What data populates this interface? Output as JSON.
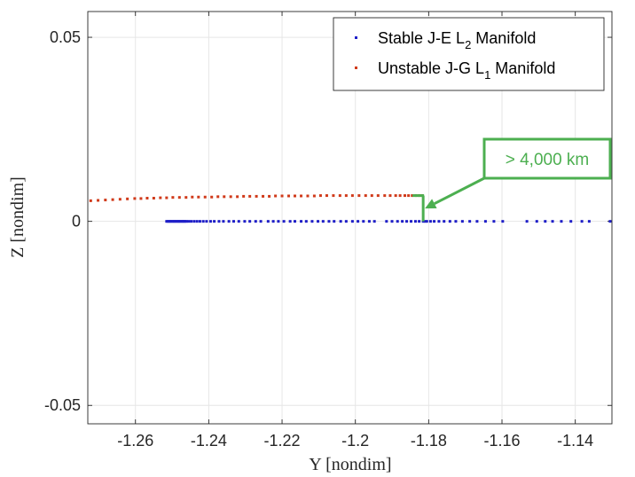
{
  "chart_data": {
    "type": "scatter",
    "title": "",
    "xlabel": "Y [nondim]",
    "ylabel": "Z [nondim]",
    "xlim": [
      -1.273,
      -1.13
    ],
    "ylim": [
      -0.055,
      0.057
    ],
    "x_ticks": [
      -1.26,
      -1.24,
      -1.22,
      -1.2,
      -1.18,
      -1.16,
      -1.14
    ],
    "x_tick_labels": [
      "-1.26",
      "-1.24",
      "-1.22",
      "-1.2",
      "-1.18",
      "-1.16",
      "-1.14"
    ],
    "y_ticks": [
      -0.05,
      0,
      0.05
    ],
    "y_tick_labels": [
      "-0.05",
      "0",
      "0.05"
    ],
    "grid": true,
    "legend_position": "top-right",
    "series": [
      {
        "name": "Stable J-E L",
        "name_sub": "2",
        "name_tail": " Manifold",
        "color": "#1f1fc8",
        "points": [
          [
            -1.2515,
            0.0
          ],
          [
            -1.2512,
            0.0
          ],
          [
            -1.2509,
            0.0
          ],
          [
            -1.2506,
            0.0
          ],
          [
            -1.2503,
            0.0
          ],
          [
            -1.25,
            0.0
          ],
          [
            -1.2497,
            0.0
          ],
          [
            -1.2494,
            0.0
          ],
          [
            -1.2491,
            0.0
          ],
          [
            -1.2488,
            0.0
          ],
          [
            -1.2485,
            0.0
          ],
          [
            -1.2482,
            0.0
          ],
          [
            -1.2479,
            0.0
          ],
          [
            -1.2476,
            0.0
          ],
          [
            -1.2473,
            0.0
          ],
          [
            -1.247,
            0.0
          ],
          [
            -1.2467,
            0.0
          ],
          [
            -1.2464,
            0.0
          ],
          [
            -1.2461,
            0.0
          ],
          [
            -1.2455,
            0.0
          ],
          [
            -1.2448,
            0.0
          ],
          [
            -1.244,
            0.0
          ],
          [
            -1.2432,
            0.0
          ],
          [
            -1.2424,
            0.0
          ],
          [
            -1.2415,
            0.0
          ],
          [
            -1.2406,
            0.0
          ],
          [
            -1.2395,
            0.0
          ],
          [
            -1.2385,
            0.0
          ],
          [
            -1.2372,
            0.0
          ],
          [
            -1.236,
            0.0
          ],
          [
            -1.2345,
            0.0
          ],
          [
            -1.2332,
            0.0
          ],
          [
            -1.2318,
            0.0
          ],
          [
            -1.2302,
            0.0
          ],
          [
            -1.2288,
            0.0
          ],
          [
            -1.2272,
            0.0
          ],
          [
            -1.2258,
            0.0
          ],
          [
            -1.2238,
            0.0
          ],
          [
            -1.2224,
            0.0
          ],
          [
            -1.221,
            0.0
          ],
          [
            -1.2195,
            0.0
          ],
          [
            -1.2178,
            0.0
          ],
          [
            -1.2165,
            0.0
          ],
          [
            -1.2148,
            0.0
          ],
          [
            -1.2134,
            0.0
          ],
          [
            -1.2118,
            0.0
          ],
          [
            -1.2102,
            0.0
          ],
          [
            -1.2088,
            0.0
          ],
          [
            -1.2072,
            0.0
          ],
          [
            -1.2058,
            0.0
          ],
          [
            -1.204,
            0.0
          ],
          [
            -1.2025,
            0.0
          ],
          [
            -1.2008,
            0.0
          ],
          [
            -1.1993,
            0.0
          ],
          [
            -1.1978,
            0.0
          ],
          [
            -1.1962,
            0.0
          ],
          [
            -1.1948,
            0.0
          ],
          [
            -1.1915,
            0.0
          ],
          [
            -1.19,
            0.0
          ],
          [
            -1.1885,
            0.0
          ],
          [
            -1.1872,
            0.0
          ],
          [
            -1.186,
            0.0
          ],
          [
            -1.1848,
            0.0
          ],
          [
            -1.1836,
            0.0
          ],
          [
            -1.1826,
            0.0
          ],
          [
            -1.1815,
            0.0
          ],
          [
            -1.181,
            0.0
          ],
          [
            -1.1805,
            0.0
          ],
          [
            -1.1795,
            0.0
          ],
          [
            -1.1785,
            0.0
          ],
          [
            -1.1772,
            0.0
          ],
          [
            -1.1758,
            0.0
          ],
          [
            -1.1742,
            0.0
          ],
          [
            -1.1726,
            0.0
          ],
          [
            -1.1708,
            0.0
          ],
          [
            -1.1688,
            0.0
          ],
          [
            -1.1668,
            0.0
          ],
          [
            -1.1645,
            0.0
          ],
          [
            -1.1622,
            0.0
          ],
          [
            -1.1598,
            0.0
          ],
          [
            -1.1532,
            0.0
          ],
          [
            -1.1505,
            0.0
          ],
          [
            -1.1482,
            0.0
          ],
          [
            -1.1462,
            0.0
          ],
          [
            -1.1438,
            0.0
          ],
          [
            -1.1412,
            0.0
          ],
          [
            -1.1382,
            0.0
          ],
          [
            -1.1362,
            0.0
          ],
          [
            -1.1305,
            0.0
          ]
        ]
      },
      {
        "name": "Unstable J-G L",
        "name_sub": "1",
        "name_tail": " Manifold",
        "color": "#d03a1a",
        "points": [
          [
            -1.2722,
            0.0056
          ],
          [
            -1.2702,
            0.0057
          ],
          [
            -1.2682,
            0.0058
          ],
          [
            -1.2662,
            0.0059
          ],
          [
            -1.2642,
            0.006
          ],
          [
            -1.2622,
            0.0061
          ],
          [
            -1.2602,
            0.0062
          ],
          [
            -1.2585,
            0.0062
          ],
          [
            -1.2568,
            0.0063
          ],
          [
            -1.255,
            0.0063
          ],
          [
            -1.2532,
            0.0064
          ],
          [
            -1.2515,
            0.0064
          ],
          [
            -1.2498,
            0.0065
          ],
          [
            -1.248,
            0.0065
          ],
          [
            -1.2462,
            0.0065
          ],
          [
            -1.2445,
            0.0066
          ],
          [
            -1.2428,
            0.0066
          ],
          [
            -1.241,
            0.0066
          ],
          [
            -1.2392,
            0.0066
          ],
          [
            -1.2375,
            0.0067
          ],
          [
            -1.2358,
            0.0067
          ],
          [
            -1.234,
            0.0067
          ],
          [
            -1.2322,
            0.0067
          ],
          [
            -1.2305,
            0.0068
          ],
          [
            -1.2288,
            0.0068
          ],
          [
            -1.227,
            0.0068
          ],
          [
            -1.2252,
            0.0068
          ],
          [
            -1.2235,
            0.0068
          ],
          [
            -1.2218,
            0.0069
          ],
          [
            -1.22,
            0.0069
          ],
          [
            -1.2182,
            0.0069
          ],
          [
            -1.2165,
            0.0069
          ],
          [
            -1.2148,
            0.0069
          ],
          [
            -1.213,
            0.0069
          ],
          [
            -1.2112,
            0.0069
          ],
          [
            -1.2095,
            0.007
          ],
          [
            -1.2078,
            0.007
          ],
          [
            -1.206,
            0.007
          ],
          [
            -1.2042,
            0.007
          ],
          [
            -1.2025,
            0.007
          ],
          [
            -1.2008,
            0.007
          ],
          [
            -1.199,
            0.007
          ],
          [
            -1.1972,
            0.007
          ],
          [
            -1.1955,
            0.007
          ],
          [
            -1.1938,
            0.007
          ],
          [
            -1.192,
            0.007
          ],
          [
            -1.1905,
            0.007
          ],
          [
            -1.189,
            0.007
          ],
          [
            -1.1878,
            0.007
          ],
          [
            -1.1865,
            0.007
          ],
          [
            -1.1855,
            0.007
          ],
          [
            -1.1845,
            0.007
          ],
          [
            -1.1835,
            0.007
          ],
          [
            -1.1826,
            0.007
          ],
          [
            -1.1818,
            0.007
          ]
        ]
      }
    ],
    "annotation": {
      "text": "> 4,000 km",
      "color": "#4caf50",
      "bracket_x": -1.1815,
      "bracket_y_top": 0.007,
      "bracket_y_bottom": 0.0,
      "arrow_target": [
        -1.1815,
        0.0035
      ]
    }
  }
}
